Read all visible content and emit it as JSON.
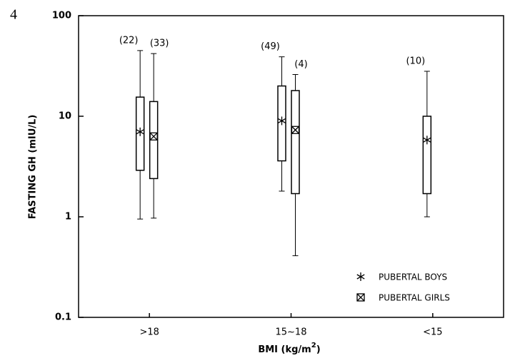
{
  "figure_label": "4",
  "chart_data": {
    "type": "box",
    "y_label": "FASTING GH (mIU/L)",
    "x_label": {
      "text": "BMI (kg/m",
      "superscript": "2",
      "suffix": ")"
    },
    "categories": [
      ">18",
      "15~18",
      "<15"
    ],
    "ylim": [
      0.1,
      100
    ],
    "yticks": [
      0.1,
      1,
      10,
      100
    ],
    "log_scale": true,
    "grid": false,
    "legend": "lower right",
    "series": [
      {
        "name": "PUBERTAL BOYS",
        "marker": "asterisk",
        "color": "#000000",
        "min": [
          0.95,
          1.8,
          1.0
        ],
        "q1": [
          2.9,
          3.6,
          1.7
        ],
        "median": [
          7,
          9,
          5.8
        ],
        "q3": [
          15.5,
          20,
          10
        ],
        "max": [
          45,
          39,
          28
        ],
        "n": [
          22,
          49,
          10
        ],
        "n_labels": [
          "(22)",
          "(49)",
          "(10)"
        ]
      },
      {
        "name": "PUBERTAL GIRLS",
        "marker": "boxed-x",
        "color": "#000000",
        "min": [
          0.97,
          0.41,
          null
        ],
        "q1": [
          2.4,
          1.7,
          null
        ],
        "median": [
          6.3,
          7.3,
          null
        ],
        "q3": [
          14,
          18,
          null
        ],
        "max": [
          42,
          26,
          null
        ],
        "n": [
          33,
          4,
          null
        ],
        "n_labels": [
          "(33)",
          "(4)",
          null
        ]
      }
    ]
  }
}
